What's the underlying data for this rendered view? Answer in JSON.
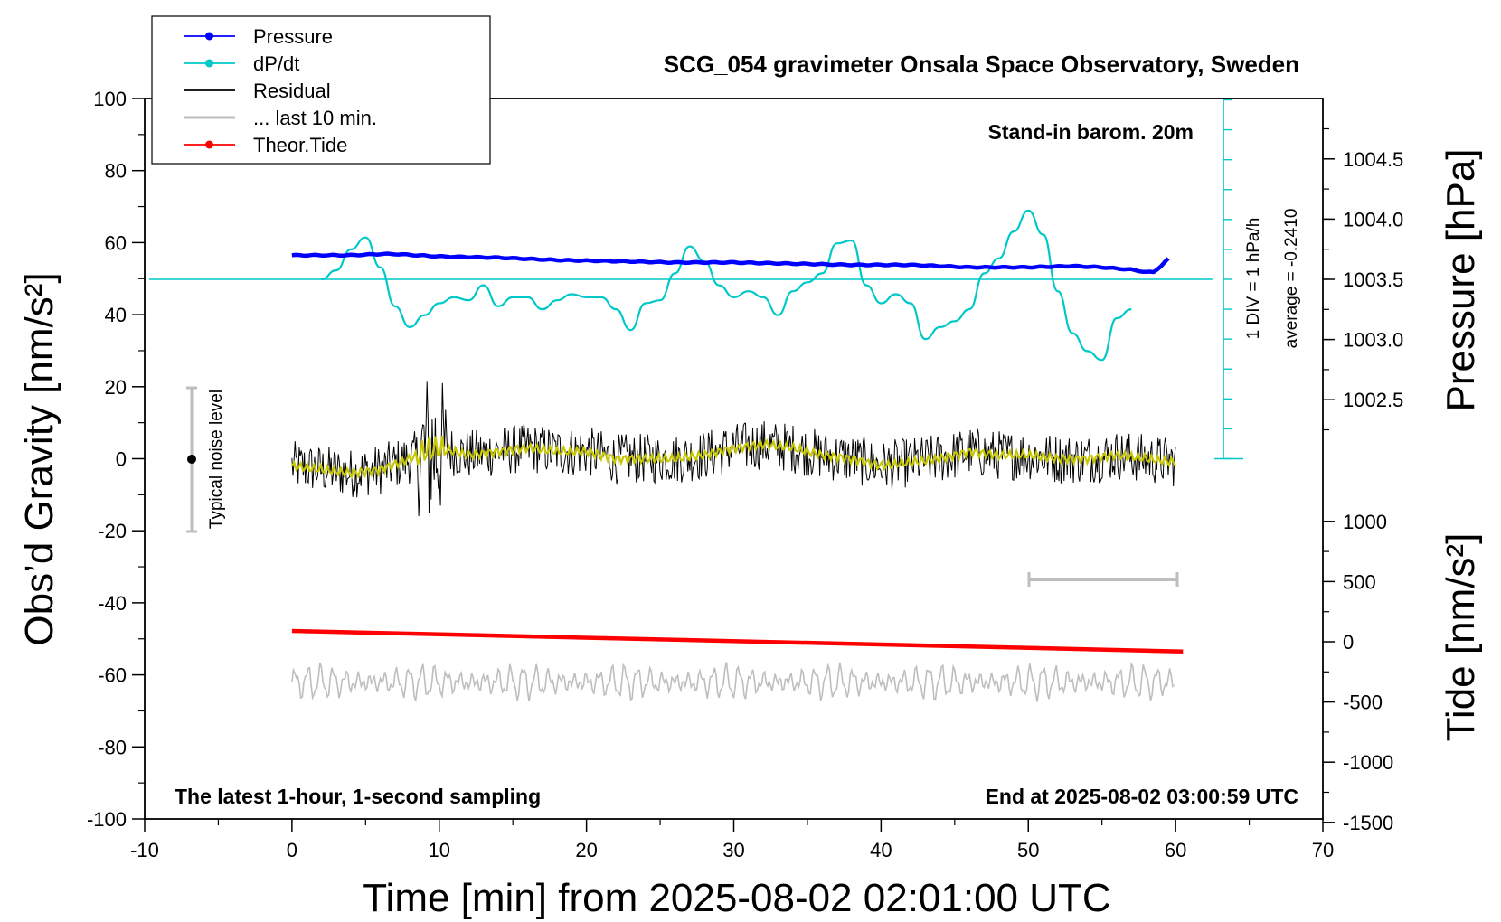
{
  "chart_data": {
    "type": "line",
    "title": "SCG_054 gravimeter Onsala Space Observatory, Sweden",
    "xlabel": "Time [min] from 2025-08-02 02:01:00 UTC",
    "ylabel_left": "Obs’d Gravity [nm/s²]",
    "ylabel_right_top": "Pressure [hPa]",
    "ylabel_right_bottom": "Tide [nm/s²]",
    "xlim": [
      -10,
      70
    ],
    "ylim_left": [
      -100,
      100
    ],
    "xticks": [
      "-10",
      "0",
      "10",
      "20",
      "30",
      "40",
      "50",
      "60",
      "70"
    ],
    "yticks_left": [
      "-100",
      "-80",
      "-60",
      "-40",
      "-20",
      "0",
      "20",
      "40",
      "60",
      "80",
      "100"
    ],
    "pressure_ticks": [
      "1002.5",
      "1003.0",
      "1003.5",
      "1004.0",
      "1004.5"
    ],
    "tide_ticks": [
      "-1500",
      "-1000",
      "-500",
      "0",
      "500",
      "1000"
    ],
    "annotations": {
      "top_right": "Stand-in barom. 20m",
      "bottom_left": "The latest 1-hour, 1-second sampling",
      "bottom_right": "End at 2025-08-02 03:00:59 UTC",
      "noise_label": "Typical noise level",
      "dpdt_scale": "1 DIV = 1 hPa/h",
      "dpdt_average": "average = -0.2410"
    },
    "legend": {
      "placement": "top-left",
      "entries": [
        {
          "label": "Pressure",
          "color": "#0000ff",
          "marker": true
        },
        {
          "label": "dP/dt",
          "color": "#00c8c8",
          "marker": true
        },
        {
          "label": "Residual",
          "color": "#000000",
          "marker": false
        },
        {
          "label": "... last 10 min.",
          "color": "#bebebe",
          "marker": false
        },
        {
          "label": "Theor.Tide",
          "color": "#ff0000",
          "marker": true
        }
      ]
    },
    "series": [
      {
        "name": "Pressure",
        "axis": "pressure",
        "color": "#0000ff",
        "x": [
          0,
          2,
          4,
          6,
          7,
          10,
          14,
          18,
          22,
          26,
          30,
          34,
          38,
          42,
          46,
          50,
          53,
          55,
          57,
          58,
          58.5,
          59,
          59.5
        ],
        "y": [
          1003.7,
          1003.7,
          1003.7,
          1003.71,
          1003.71,
          1003.69,
          1003.68,
          1003.66,
          1003.65,
          1003.64,
          1003.64,
          1003.63,
          1003.62,
          1003.62,
          1003.6,
          1003.6,
          1003.61,
          1003.6,
          1003.58,
          1003.56,
          1003.56,
          1003.61,
          1003.67
        ]
      },
      {
        "name": "dP/dt",
        "axis": "dpdt",
        "color": "#00c8c8",
        "baseline_pressure": 1003.5,
        "x": [
          2,
          3,
          4,
          5,
          6,
          7,
          8,
          9,
          10,
          11,
          12,
          13,
          14,
          15,
          16,
          17,
          18,
          19,
          20,
          21,
          22,
          23,
          24,
          25,
          26,
          27,
          28,
          29,
          30,
          31,
          32,
          33,
          34,
          35,
          36,
          37,
          38,
          39,
          40,
          41,
          42,
          43,
          44,
          45,
          46,
          47,
          48,
          49,
          50,
          51,
          52,
          53,
          54,
          55,
          56,
          57
        ],
        "y": [
          0.0,
          0.3,
          1.0,
          1.4,
          0.4,
          -0.9,
          -1.6,
          -1.2,
          -0.8,
          -0.6,
          -0.7,
          -0.2,
          -0.9,
          -0.6,
          -0.6,
          -1.0,
          -0.7,
          -0.5,
          -0.6,
          -0.6,
          -1.0,
          -1.7,
          -0.8,
          -0.7,
          0.2,
          1.1,
          0.6,
          -0.2,
          -0.6,
          -0.4,
          -0.6,
          -1.2,
          -0.4,
          -0.1,
          0.2,
          1.2,
          1.3,
          -0.2,
          -0.8,
          -0.5,
          -0.8,
          -2.0,
          -1.6,
          -1.4,
          -1.0,
          0.2,
          0.7,
          1.6,
          2.3,
          1.5,
          -0.4,
          -1.8,
          -2.4,
          -2.7,
          -1.3,
          -1.0
        ]
      },
      {
        "name": "Residual",
        "axis": "gravity",
        "color": "#000000",
        "x": [
          0,
          2,
          4,
          6,
          8,
          9,
          10,
          11,
          12,
          14,
          16,
          18,
          20,
          22,
          24,
          26,
          28,
          30,
          32,
          34,
          36,
          38,
          40,
          42,
          44,
          46,
          48,
          50,
          52,
          54,
          56,
          58,
          60
        ],
        "y": [
          -2,
          -3,
          -4,
          -3,
          0,
          2,
          3,
          2,
          1,
          2,
          3,
          2,
          2,
          0,
          0,
          0,
          1,
          3,
          4,
          3,
          1,
          0,
          -2,
          -1,
          0,
          2,
          1,
          1,
          0,
          0,
          1,
          0,
          -1
        ],
        "noise_amplitude": 7
      },
      {
        "name": "... last 10 min.",
        "axis": "gravity",
        "color": "#bebebe",
        "center": -62,
        "x": [
          0,
          60
        ]
      },
      {
        "name": "Theor.Tide",
        "axis": "tide",
        "color": "#ff0000",
        "x": [
          0,
          60.5
        ],
        "y": [
          90,
          -80
        ]
      }
    ]
  }
}
